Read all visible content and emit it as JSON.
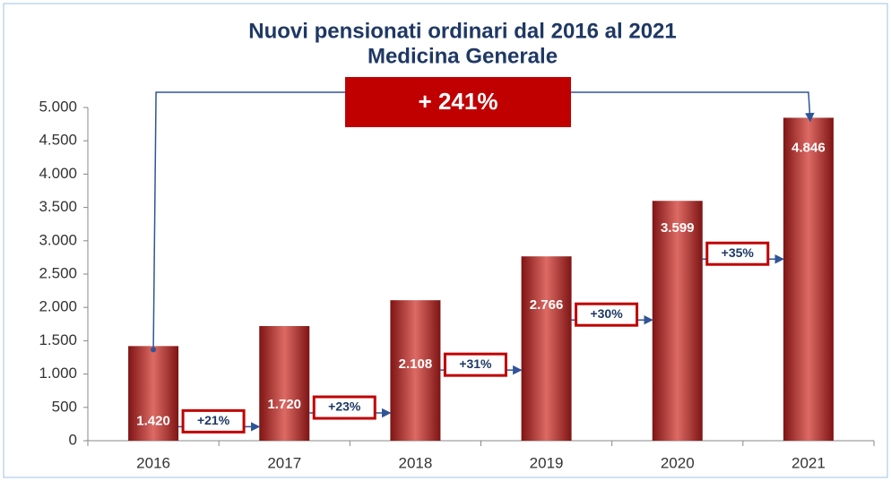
{
  "chart_data": {
    "type": "bar",
    "title": "Nuovi pensionati ordinari dal 2016 al 2021",
    "subtitle": "Medicina Generale",
    "categories": [
      "2016",
      "2017",
      "2018",
      "2019",
      "2020",
      "2021"
    ],
    "values": [
      1420,
      1720,
      2108,
      2766,
      3599,
      4846
    ],
    "value_labels": [
      "1.420",
      "1.720",
      "2.108",
      "2.766",
      "3.599",
      "4.846"
    ],
    "color": "#b22a2a",
    "ylim": [
      0,
      5000
    ],
    "yticks": [
      0,
      500,
      {
        "value": 1000,
        "label": "1.000"
      },
      {
        "value": 1500,
        "label": "1.500"
      },
      {
        "value": 2000,
        "label": "2.000"
      },
      {
        "value": 2500,
        "label": "2.500"
      },
      {
        "value": 3000,
        "label": "3.000"
      },
      {
        "value": 3500,
        "label": "3.500"
      },
      {
        "value": 4000,
        "label": "4.000"
      },
      {
        "value": 4500,
        "label": "4.500"
      },
      {
        "value": 5000,
        "label": "5.000"
      }
    ],
    "grid": false,
    "annotations": {
      "total_change": "+ 241%",
      "changes": [
        "+21%",
        "+23%",
        "+31%",
        "+30%",
        "+35%"
      ]
    }
  }
}
